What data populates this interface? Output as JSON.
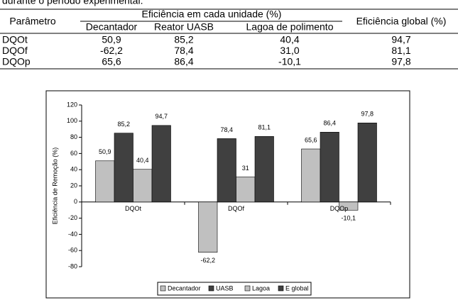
{
  "caption": "durante o período experimental.",
  "table": {
    "header": {
      "parameter": "Parâmetro",
      "group": "Eficiência em cada unidade (%)",
      "units": [
        "Decantador",
        "Reator UASB",
        "Lagoa de polimento"
      ],
      "global": "Eficiência global (%)"
    },
    "rows": [
      [
        "DQOt",
        "50,9",
        "85,2",
        "40,4",
        "94,7"
      ],
      [
        "DQOf",
        "-62,2",
        "78,4",
        "31,0",
        "81,1"
      ],
      [
        "DQOp",
        "65,6",
        "86,4",
        "-10,1",
        "97,8"
      ]
    ]
  },
  "chart_data": {
    "type": "bar",
    "y_label": "Eficiência de Remoção (%)",
    "categories": [
      "DQOt",
      "DQOf",
      "DQOp"
    ],
    "series": [
      {
        "name": "Decantador",
        "color": "#c0c0c0",
        "values": [
          50.9,
          -62.2,
          65.6
        ],
        "value_labels": [
          "50,9",
          "-62,2",
          "65,6"
        ]
      },
      {
        "name": "UASB",
        "color": "#404040",
        "values": [
          85.2,
          78.4,
          86.4
        ],
        "value_labels": [
          "85,2",
          "78,4",
          "86,4"
        ]
      },
      {
        "name": "Lagoa",
        "color": "#c0c0c0",
        "values": [
          40.4,
          31,
          -10.1
        ],
        "value_labels": [
          "40,4",
          "31",
          "-10,1"
        ]
      },
      {
        "name": "E global",
        "color": "#404040",
        "values": [
          94.7,
          81.1,
          97.8
        ],
        "value_labels": [
          "94,7",
          "81,1",
          "97,8"
        ]
      }
    ],
    "ylim": [
      -80,
      120
    ],
    "yticks": [
      -80,
      -60,
      -40,
      -20,
      0,
      20,
      40,
      60,
      80,
      100,
      120
    ],
    "grid": false,
    "legend": "bottom"
  }
}
